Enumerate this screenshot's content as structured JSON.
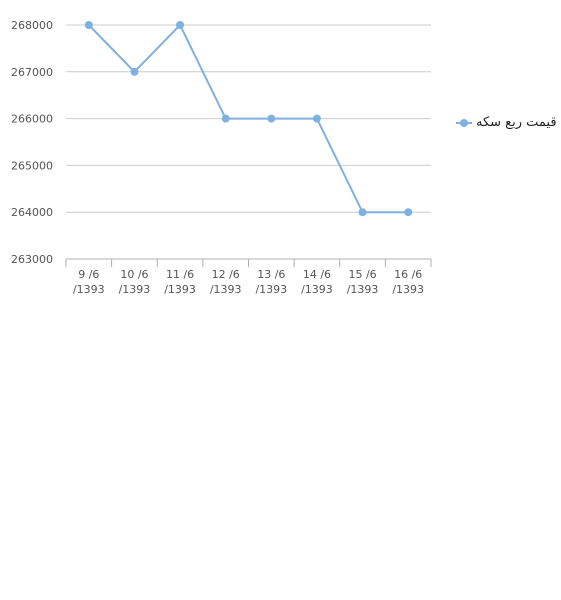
{
  "chart_data": {
    "type": "line",
    "categories": [
      [
        "9 /6",
        "/1393"
      ],
      [
        "10 /6",
        "/1393"
      ],
      [
        "11 /6",
        "/1393"
      ],
      [
        "12 /6",
        "/1393"
      ],
      [
        "13 /6",
        "/1393"
      ],
      [
        "14 /6",
        "/1393"
      ],
      [
        "15 /6",
        "/1393"
      ],
      [
        "16 /6",
        "/1393"
      ]
    ],
    "series": [
      {
        "name": "قیمت ربع سکه",
        "values": [
          268000,
          267000,
          268000,
          266000,
          266000,
          266000,
          264000,
          264000
        ],
        "color": "#7fb1e0"
      }
    ],
    "y_ticks": [
      "263000",
      "264000",
      "265000",
      "266000",
      "267000",
      "268000"
    ],
    "ylim": [
      263000,
      268000
    ],
    "grid": "horizontal",
    "legend_position": "right",
    "title": "",
    "xlabel": "",
    "ylabel": ""
  },
  "colors": {
    "grid": "#cccccc",
    "axis": "#b0b0b0",
    "tick_text": "#555555"
  }
}
